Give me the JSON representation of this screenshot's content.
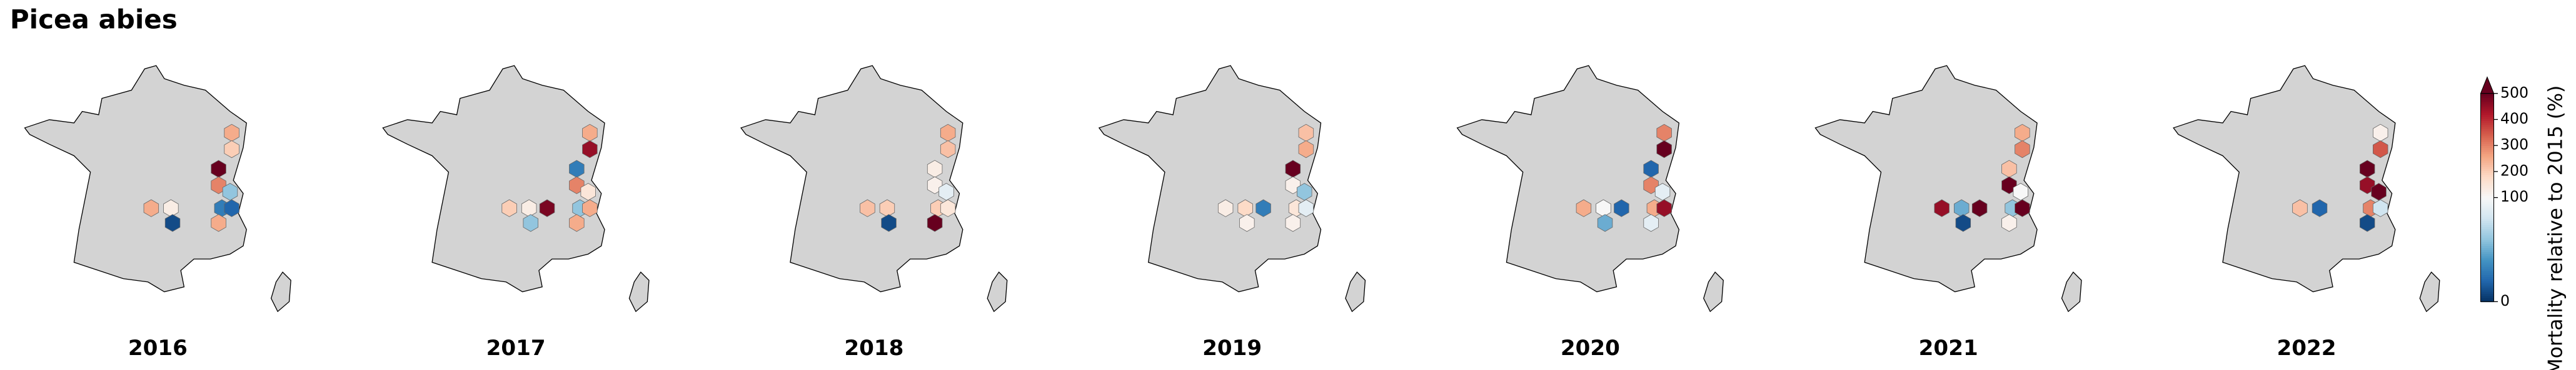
{
  "title": "Picea abies",
  "colorbar": {
    "label": "Mortality relative to 2015 (%)",
    "lim": [
      0,
      500
    ],
    "center": 100,
    "ticks": [
      0,
      100,
      200,
      300,
      400,
      500
    ],
    "extend": "max",
    "cmap_colors": [
      "#053061",
      "#2166ac",
      "#4393c3",
      "#92c5de",
      "#d1e5f0",
      "#f7f7f7",
      "#fddbc7",
      "#f4a582",
      "#d6604d",
      "#b2182b",
      "#67001f"
    ]
  },
  "panels": [
    {
      "year": "2016",
      "values": [
        250,
        200,
        500,
        300,
        60,
        30,
        20,
        250,
        130,
        250,
        null,
        10
      ]
    },
    {
      "year": "2017",
      "values": [
        250,
        450,
        30,
        300,
        150,
        60,
        250,
        250,
        130,
        200,
        480,
        60
      ]
    },
    {
      "year": "2018",
      "values": [
        250,
        220,
        130,
        120,
        90,
        200,
        150,
        500,
        200,
        220,
        null,
        10
      ]
    },
    {
      "year": "2019",
      "values": [
        220,
        250,
        500,
        120,
        60,
        150,
        90,
        120,
        180,
        130,
        30,
        120
      ]
    },
    {
      "year": "2020",
      "values": [
        300,
        500,
        20,
        300,
        90,
        250,
        450,
        90,
        100,
        250,
        20,
        50
      ]
    },
    {
      "year": "2021",
      "values": [
        250,
        300,
        220,
        500,
        100,
        60,
        500,
        120,
        50,
        450,
        500,
        10
      ]
    },
    {
      "year": "2022",
      "values": [
        120,
        350,
        500,
        450,
        500,
        300,
        80,
        10,
        20,
        220,
        null,
        null
      ]
    }
  ]
}
